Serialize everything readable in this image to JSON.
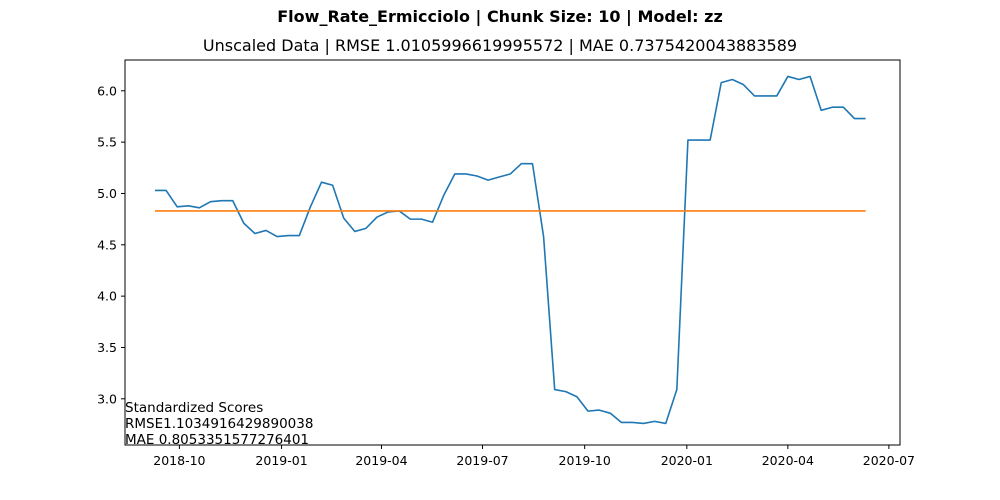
{
  "suptitle": "Flow_Rate_Ermicciolo | Chunk Size: 10 | Model: zz",
  "subtitle": "Unscaled Data | RMSE 1.0105996619995572 | MAE 0.7375420043883589",
  "note": {
    "line1": "Standardized Scores",
    "line2": "RMSE1.1034916429890038",
    "line3": "MAE 0.8053351577276401"
  },
  "chart_data": {
    "type": "line",
    "title": "Unscaled Data | RMSE 1.0105996619995572 | MAE 0.7375420043883589",
    "xlabel": "",
    "ylabel": "",
    "x_is_date": true,
    "xlim": [
      "2018-08-13",
      "2020-07-11"
    ],
    "ylim": [
      2.55,
      6.3
    ],
    "xticks": [
      {
        "date": "2018-10-01",
        "label": "2018-10"
      },
      {
        "date": "2019-01-01",
        "label": "2019-01"
      },
      {
        "date": "2019-04-01",
        "label": "2019-04"
      },
      {
        "date": "2019-07-01",
        "label": "2019-07"
      },
      {
        "date": "2019-10-01",
        "label": "2019-10"
      },
      {
        "date": "2020-01-01",
        "label": "2020-01"
      },
      {
        "date": "2020-04-01",
        "label": "2020-04"
      },
      {
        "date": "2020-07-01",
        "label": "2020-07"
      }
    ],
    "yticks": [
      3.0,
      3.5,
      4.0,
      4.5,
      5.0,
      5.5,
      6.0
    ],
    "ytick_labels": [
      "3.0",
      "3.5",
      "4.0",
      "4.5",
      "5.0",
      "5.5",
      "6.0"
    ],
    "grid": false,
    "series": [
      {
        "color": "#1f77b4",
        "points": [
          [
            "2018-09-09",
            5.03
          ],
          [
            "2018-09-19",
            5.03
          ],
          [
            "2018-09-29",
            4.87
          ],
          [
            "2018-10-09",
            4.88
          ],
          [
            "2018-10-19",
            4.86
          ],
          [
            "2018-10-29",
            4.92
          ],
          [
            "2018-11-08",
            4.93
          ],
          [
            "2018-11-18",
            4.93
          ],
          [
            "2018-11-28",
            4.71
          ],
          [
            "2018-12-08",
            4.61
          ],
          [
            "2018-12-18",
            4.64
          ],
          [
            "2018-12-28",
            4.58
          ],
          [
            "2019-01-07",
            4.59
          ],
          [
            "2019-01-17",
            4.59
          ],
          [
            "2019-01-27",
            4.87
          ],
          [
            "2019-02-06",
            5.11
          ],
          [
            "2019-02-16",
            5.08
          ],
          [
            "2019-02-26",
            4.76
          ],
          [
            "2019-03-08",
            4.63
          ],
          [
            "2019-03-18",
            4.66
          ],
          [
            "2019-03-28",
            4.77
          ],
          [
            "2019-04-07",
            4.82
          ],
          [
            "2019-04-17",
            4.83
          ],
          [
            "2019-04-27",
            4.75
          ],
          [
            "2019-05-07",
            4.75
          ],
          [
            "2019-05-17",
            4.72
          ],
          [
            "2019-05-27",
            4.98
          ],
          [
            "2019-06-06",
            5.19
          ],
          [
            "2019-06-16",
            5.19
          ],
          [
            "2019-06-26",
            5.17
          ],
          [
            "2019-07-06",
            5.13
          ],
          [
            "2019-07-16",
            5.16
          ],
          [
            "2019-07-26",
            5.19
          ],
          [
            "2019-08-05",
            5.29
          ],
          [
            "2019-08-15",
            5.29
          ],
          [
            "2019-08-25",
            4.58
          ],
          [
            "2019-09-04",
            3.09
          ],
          [
            "2019-09-14",
            3.07
          ],
          [
            "2019-09-24",
            3.02
          ],
          [
            "2019-10-04",
            2.88
          ],
          [
            "2019-10-14",
            2.89
          ],
          [
            "2019-10-24",
            2.86
          ],
          [
            "2019-11-03",
            2.77
          ],
          [
            "2019-11-13",
            2.77
          ],
          [
            "2019-11-23",
            2.76
          ],
          [
            "2019-12-03",
            2.78
          ],
          [
            "2019-12-13",
            2.76
          ],
          [
            "2019-12-23",
            3.09
          ],
          [
            "2020-01-02",
            5.52
          ],
          [
            "2020-01-12",
            5.52
          ],
          [
            "2020-01-22",
            5.52
          ],
          [
            "2020-02-01",
            6.08
          ],
          [
            "2020-02-11",
            6.11
          ],
          [
            "2020-02-21",
            6.06
          ],
          [
            "2020-03-02",
            5.95
          ],
          [
            "2020-03-12",
            5.95
          ],
          [
            "2020-03-22",
            5.95
          ],
          [
            "2020-04-01",
            6.14
          ],
          [
            "2020-04-11",
            6.11
          ],
          [
            "2020-04-21",
            6.14
          ],
          [
            "2020-05-01",
            5.81
          ],
          [
            "2020-05-11",
            5.84
          ],
          [
            "2020-05-21",
            5.84
          ],
          [
            "2020-05-31",
            5.73
          ],
          [
            "2020-06-10",
            5.73
          ]
        ]
      },
      {
        "color": "#ff7f0e",
        "points": [
          [
            "2018-09-09",
            4.83
          ],
          [
            "2020-06-10",
            4.83
          ]
        ]
      }
    ]
  }
}
